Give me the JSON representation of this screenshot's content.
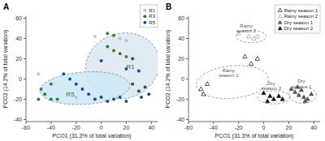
{
  "chart_data": [
    {
      "type": "scatter",
      "title": "A",
      "xlabel": "PCO1 (31.3% of total variation)",
      "ylabel": "PCO2 (14.2% of total variation)",
      "xlim": [
        -60,
        45
      ],
      "ylim": [
        -42,
        62
      ],
      "xticks": [
        -60,
        -40,
        -20,
        0,
        20,
        40
      ],
      "yticks": [
        -40,
        -20,
        0,
        20,
        40,
        60
      ],
      "grid": false,
      "legend": "upper right",
      "series": [
        {
          "name": "R1",
          "color": "#c0c0c0",
          "marker": "circle",
          "x": [
            -5,
            20,
            15,
            -50,
            -20
          ],
          "values": [
            42,
            38,
            40,
            5,
            -18
          ]
        },
        {
          "name": "R3",
          "color": "#3a7a3a",
          "marker": "circle",
          "x": [
            5,
            10,
            5,
            10,
            15,
            20,
            -40,
            -48,
            -45,
            -40,
            -35,
            -50
          ],
          "values": [
            45,
            43,
            32,
            28,
            25,
            22,
            -5,
            -10,
            -15,
            -20,
            -20,
            -20
          ]
        },
        {
          "name": "R5",
          "color": "#1a5090",
          "marker": "circle",
          "x": [
            25,
            0,
            20,
            30,
            25,
            35,
            30,
            38,
            32,
            -30,
            -25,
            -20,
            -15,
            -10,
            -5,
            0,
            5,
            10,
            15,
            20
          ],
          "values": [
            20,
            18,
            10,
            8,
            -5,
            -8,
            -12,
            -15,
            -18,
            5,
            0,
            -5,
            -10,
            -15,
            -20,
            -18,
            -22,
            -20,
            -18,
            -22
          ]
        }
      ],
      "ellipses": [
        {
          "cx": 17,
          "cy": 13,
          "width": 58,
          "height": 66,
          "angle": -20,
          "color": "#dde8ee"
        },
        {
          "cx": -13,
          "cy": -9,
          "width": 72,
          "height": 32,
          "angle": 5,
          "color": "#cce6f4"
        }
      ],
      "annotations": [
        {
          "text": "R1",
          "x": 20,
          "y": 10
        },
        {
          "text": "R5",
          "x": -28,
          "y": -17
        }
      ]
    },
    {
      "type": "scatter",
      "title": "B",
      "xlabel": "PCO1 (31.3% of total variation)",
      "ylabel": "PCO2 (14.2% of total variation)",
      "xlim": [
        -60,
        45
      ],
      "ylim": [
        -42,
        62
      ],
      "xticks": [
        -60,
        -40,
        -20,
        0,
        20,
        40
      ],
      "yticks": [
        -40,
        -20,
        0,
        20,
        40,
        60
      ],
      "grid": false,
      "legend": "upper right",
      "series": [
        {
          "name": "Rainy season 1",
          "color": "#2a2a2a",
          "marker": "triangle-open",
          "x": [
            -50,
            -48,
            -45,
            -15,
            -10,
            -5
          ],
          "values": [
            -10,
            -15,
            -5,
            22,
            15,
            20
          ]
        },
        {
          "name": "Rainy season 2",
          "color": "#aaaaaa",
          "marker": "triangle-open",
          "x": [
            -20,
            -12,
            -5,
            -8
          ],
          "values": [
            45,
            42,
            42,
            40
          ]
        },
        {
          "name": "Dry season 1",
          "color": "#555555",
          "marker": "triangle",
          "x": [
            22,
            25,
            28,
            30,
            32,
            35,
            38,
            33,
            27
          ],
          "values": [
            -10,
            -13,
            -16,
            -11,
            -18,
            -20,
            -15,
            -22,
            -8
          ]
        },
        {
          "name": "Dry season 2",
          "color": "#111111",
          "marker": "triangle",
          "x": [
            0,
            5,
            8,
            3,
            12,
            15
          ],
          "values": [
            -14,
            -17,
            -20,
            -22,
            -17,
            -20
          ]
        }
      ],
      "ellipses": [
        {
          "cx": -10,
          "cy": 42,
          "width": 24,
          "height": 12,
          "angle": 0
        },
        {
          "cx": -25,
          "cy": -3,
          "width": 58,
          "height": 32,
          "angle": 8
        },
        {
          "cx": 8,
          "cy": -18,
          "width": 26,
          "height": 13,
          "angle": 0
        },
        {
          "cx": 31,
          "cy": -16,
          "width": 22,
          "height": 16,
          "angle": 0
        }
      ],
      "annotations": [
        {
          "text": "Rainy\nseason 1",
          "x": -28,
          "y": 2
        },
        {
          "text": "Rainy\nseason 2",
          "x": -14,
          "y": 46
        },
        {
          "text": "Dry\nseason 2",
          "x": 6,
          "y": -11
        },
        {
          "text": "Dry\nseason 1",
          "x": 30,
          "y": -9
        }
      ]
    }
  ]
}
